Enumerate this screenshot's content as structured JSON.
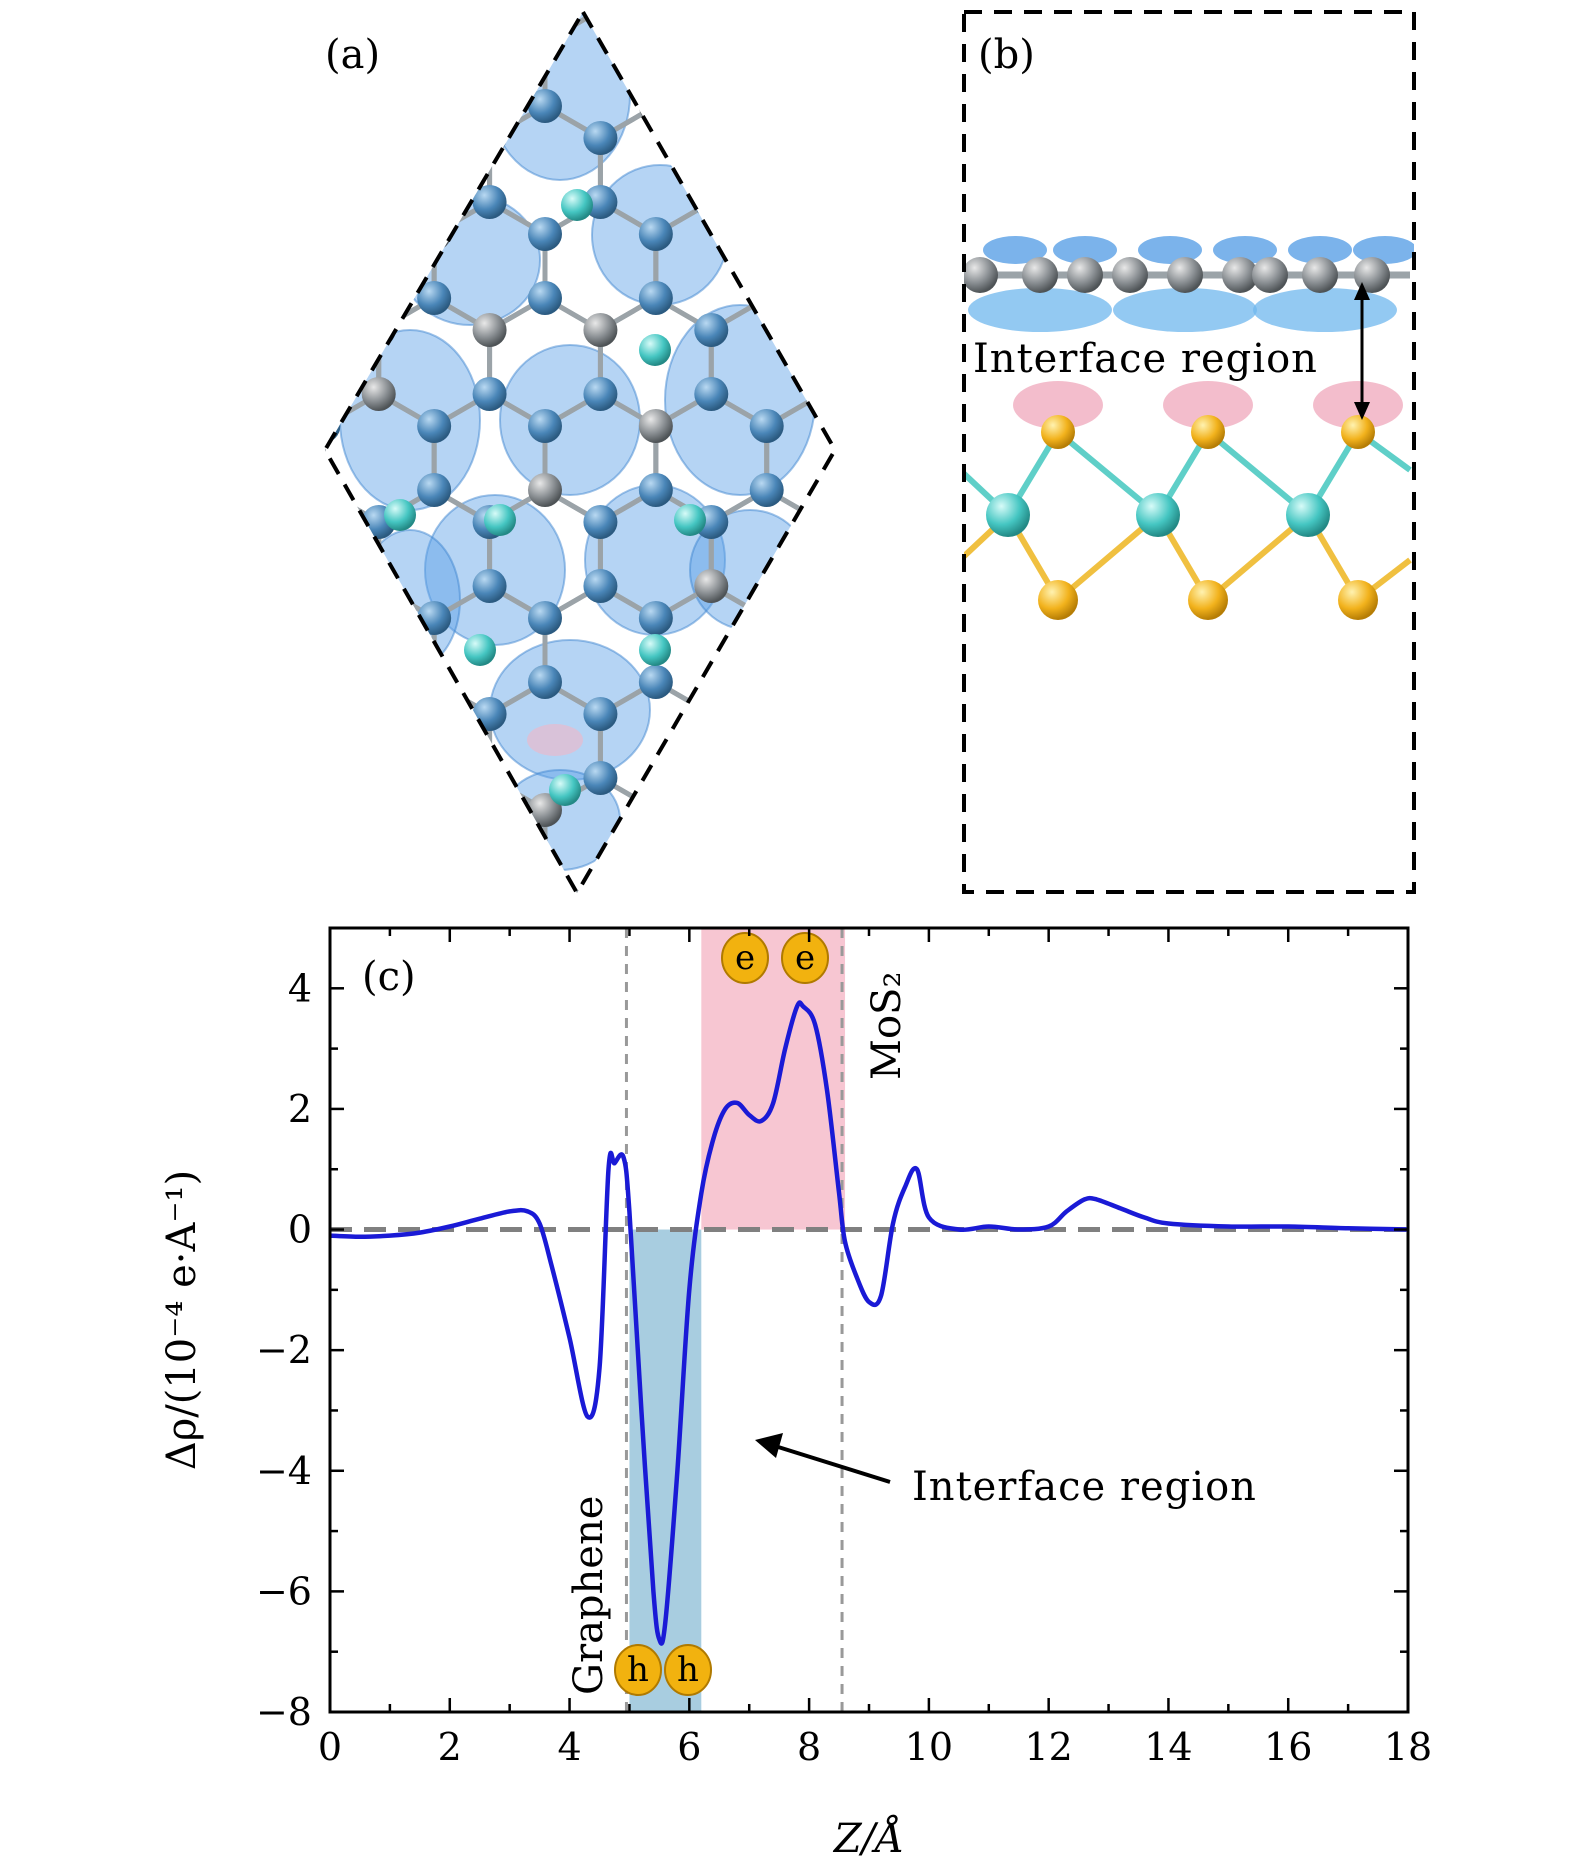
{
  "panels": {
    "a": {
      "label": "(a)"
    },
    "b": {
      "label": "(b)",
      "annotation": "Interface region"
    },
    "c": {
      "label": "(c)"
    }
  },
  "colors": {
    "curve": "#1a1ad6",
    "zero_line": "#808080",
    "hole_band": "#a8cde0",
    "electron_band": "#f7c6d2",
    "badge_fill": "#f2b20f",
    "badge_stroke": "#b07a00",
    "graphene_atom": "#7f8c8d",
    "carbon_blue": "#3e7fb0",
    "mo_atom": "#40c4c0",
    "s_atom": "#f0b01e",
    "isosurface_blue": "#5aa0e6",
    "isosurface_pink": "#f2b6c6"
  },
  "chart_data": {
    "type": "line",
    "xlabel": "Z/Å",
    "ylabel": "Δρ/(10⁻⁴ e·A⁻¹)",
    "xlim": [
      0,
      18
    ],
    "ylim": [
      -8,
      5
    ],
    "xticks": [
      "0",
      "2",
      "4",
      "6",
      "8",
      "10",
      "12",
      "14",
      "16",
      "18"
    ],
    "yticks": [
      "4",
      "2",
      "0",
      "−2",
      "−4",
      "−6",
      "−8"
    ],
    "series": [
      {
        "x": [
          0,
          0.5,
          1.0,
          1.5,
          2.0,
          2.5,
          3.0,
          3.3,
          3.5,
          3.7,
          4.0,
          4.3,
          4.5,
          4.65,
          4.75,
          4.9,
          5.0,
          5.2,
          5.4,
          5.5,
          5.6,
          5.8,
          6.0,
          6.2,
          6.4,
          6.6,
          6.8,
          7.0,
          7.2,
          7.4,
          7.6,
          7.8,
          7.9,
          8.1,
          8.3,
          8.5,
          8.6,
          8.8,
          9.0,
          9.2,
          9.4,
          9.6,
          9.8,
          10.0,
          10.5,
          11.0,
          11.5,
          12.0,
          12.3,
          12.6,
          12.8,
          13.2,
          13.6,
          14.0,
          15.0,
          16.0,
          17.0,
          18.0
        ],
        "y": [
          -0.1,
          -0.12,
          -0.1,
          -0.05,
          0.05,
          0.18,
          0.3,
          0.3,
          0.1,
          -0.6,
          -1.8,
          -3.1,
          -2.3,
          1.0,
          1.1,
          1.2,
          0.3,
          -3.0,
          -6.0,
          -6.8,
          -6.5,
          -4.0,
          -1.0,
          0.6,
          1.5,
          2.0,
          2.1,
          1.9,
          1.8,
          2.1,
          3.0,
          3.7,
          3.7,
          3.4,
          2.3,
          0.6,
          -0.2,
          -0.8,
          -1.2,
          -1.1,
          0.1,
          0.7,
          1.0,
          0.2,
          0.0,
          0.05,
          0.0,
          0.05,
          0.3,
          0.5,
          0.5,
          0.35,
          0.2,
          0.1,
          0.05,
          0.05,
          0.02,
          0.0
        ]
      }
    ],
    "vlines": [
      4.95,
      8.55
    ],
    "bands": [
      {
        "x0": 5.0,
        "x1": 6.2,
        "y0": -8,
        "y1": 0,
        "kind": "hole"
      },
      {
        "x0": 6.2,
        "x1": 8.6,
        "y0": 0,
        "y1": 5,
        "kind": "electron"
      }
    ],
    "annotations": {
      "graphene": "Graphene",
      "mos2": "MoS₂",
      "interface": "Interface region",
      "electron_badges": [
        "e",
        "e"
      ],
      "hole_badges": [
        "h",
        "h"
      ]
    }
  }
}
